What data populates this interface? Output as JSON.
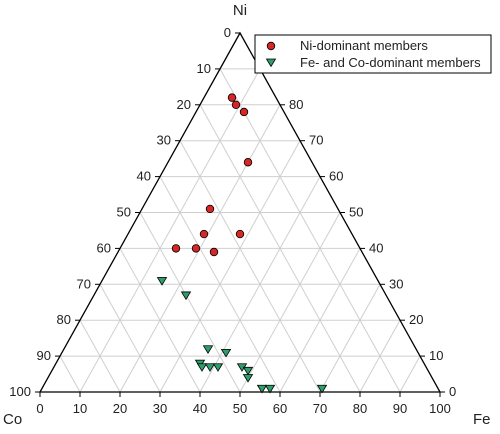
{
  "chart_data": {
    "type": "scatter",
    "subtype": "ternary",
    "corner_labels": {
      "top": "Ni",
      "left": "Co",
      "right": "Fe"
    },
    "grid": true,
    "grid_step": 10,
    "axis_ticks": [
      0,
      10,
      20,
      30,
      40,
      50,
      60,
      70,
      80,
      90,
      100
    ],
    "legend_placement": "top-right",
    "series": [
      {
        "name": "Ni-dominant members",
        "marker": "circle",
        "color": "#d62728",
        "points": [
          {
            "ni": 82,
            "co": 11,
            "fe": 7
          },
          {
            "ni": 80,
            "co": 11,
            "fe": 9
          },
          {
            "ni": 78,
            "co": 10,
            "fe": 12
          },
          {
            "ni": 64,
            "co": 16,
            "fe": 20
          },
          {
            "ni": 51,
            "co": 32,
            "fe": 17
          },
          {
            "ni": 44,
            "co": 37,
            "fe": 19
          },
          {
            "ni": 44,
            "co": 28,
            "fe": 28
          },
          {
            "ni": 40,
            "co": 41,
            "fe": 19
          },
          {
            "ni": 39,
            "co": 37,
            "fe": 24
          },
          {
            "ni": 40,
            "co": 46,
            "fe": 14
          }
        ]
      },
      {
        "name": "Fe- and Co-dominant members",
        "marker": "triangle-down",
        "color": "#2e9e6b",
        "points": [
          {
            "ni": 31,
            "co": 54,
            "fe": 15
          },
          {
            "ni": 27,
            "co": 50,
            "fe": 23
          },
          {
            "ni": 12,
            "co": 52,
            "fe": 36
          },
          {
            "ni": 11,
            "co": 48,
            "fe": 41
          },
          {
            "ni": 8,
            "co": 56,
            "fe": 36
          },
          {
            "ni": 7,
            "co": 56,
            "fe": 37
          },
          {
            "ni": 7,
            "co": 54,
            "fe": 39
          },
          {
            "ni": 7,
            "co": 52,
            "fe": 41
          },
          {
            "ni": 7,
            "co": 46,
            "fe": 47
          },
          {
            "ni": 6,
            "co": 45,
            "fe": 49
          },
          {
            "ni": 4,
            "co": 46,
            "fe": 50
          },
          {
            "ni": 1,
            "co": 44,
            "fe": 55
          },
          {
            "ni": 1,
            "co": 42,
            "fe": 57
          },
          {
            "ni": 1,
            "co": 29,
            "fe": 70
          }
        ]
      }
    ]
  }
}
